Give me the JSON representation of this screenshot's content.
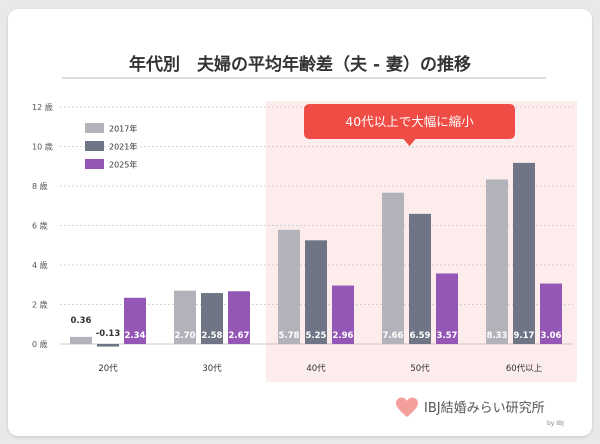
{
  "title": "年代別　夫婦の平均年齢差（夫 - 妻）の推移",
  "callout": "40代以上で大幅に縮小",
  "logo": {
    "text": "IBJ結婚みらい研究所",
    "sub": "by IBJ"
  },
  "colors": {
    "2017": "#b2b3ba",
    "2021": "#6f7584",
    "2025": "#9457b6",
    "highlight": "#fcecec",
    "callout": "#ef4c45",
    "heart": "#f3a09c"
  },
  "chart_data": {
    "type": "bar",
    "categories": [
      "20代",
      "30代",
      "40代",
      "50代",
      "60代以上"
    ],
    "series": [
      {
        "name": "2017年",
        "values": [
          0.36,
          2.7,
          5.78,
          7.66,
          8.33
        ]
      },
      {
        "name": "2021年",
        "values": [
          -0.13,
          2.58,
          5.25,
          6.59,
          9.17
        ]
      },
      {
        "name": "2025年",
        "values": [
          2.34,
          2.67,
          2.96,
          3.57,
          3.06
        ]
      }
    ],
    "data_labels": [
      [
        "0.36",
        "2.70",
        "5.78",
        "7.66",
        "8.33"
      ],
      [
        "-0.13",
        "2.58",
        "5.25",
        "6.59",
        "9.17"
      ],
      [
        "2.34",
        "2.67",
        "2.96",
        "3.57",
        "3.06"
      ]
    ],
    "y_ticks": [
      0,
      2,
      4,
      6,
      8,
      10,
      12
    ],
    "y_tick_labels": [
      "0 歳",
      "2 歳",
      "4 歳",
      "6 歳",
      "8 歳",
      "10 歳",
      "12 歳"
    ],
    "ylim": [
      0,
      12
    ],
    "grid": true,
    "legend_position": "top-left",
    "highlight_categories": [
      "40代",
      "50代",
      "60代以上"
    ]
  }
}
